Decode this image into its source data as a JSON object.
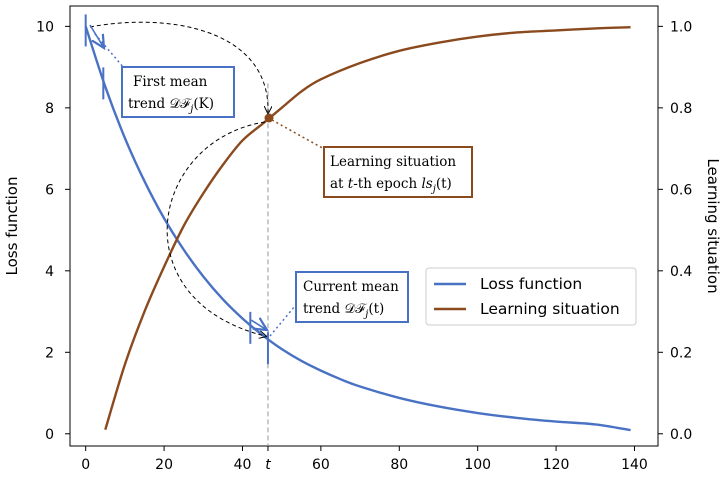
{
  "chart_data": {
    "type": "line",
    "xlabel": "",
    "ylabel_left": "Loss function",
    "ylabel_right": "Learning situation",
    "xlim": [
      -4,
      146
    ],
    "ylim_left": [
      -0.3,
      10.5
    ],
    "ylim_right": [
      -0.03,
      1.05
    ],
    "x_ticks": [
      0,
      20,
      40,
      60,
      80,
      100,
      120,
      140
    ],
    "x_tick_labels": [
      "0",
      "20",
      "40",
      "t",
      "60",
      "80",
      "100",
      "120",
      "140"
    ],
    "t_marker": 46.5,
    "left_ticks": [
      0,
      2,
      4,
      6,
      8,
      10
    ],
    "right_ticks": [
      "0.0",
      "0.2",
      "0.4",
      "0.6",
      "0.8",
      "1.0"
    ],
    "series": [
      {
        "name": "Loss function",
        "axis": "left",
        "color": "#4a72c4",
        "x": [
          0,
          5,
          10,
          15,
          20,
          25,
          30,
          35,
          40,
          45,
          50,
          55,
          60,
          65,
          70,
          80,
          90,
          100,
          110,
          120,
          130,
          139
        ],
        "y": [
          10.0,
          8.52,
          7.26,
          6.2,
          5.29,
          4.52,
          3.86,
          3.3,
          2.83,
          2.43,
          2.08,
          1.79,
          1.55,
          1.34,
          1.16,
          0.88,
          0.67,
          0.51,
          0.39,
          0.3,
          0.23,
          0.09
        ]
      },
      {
        "name": "Learning situation",
        "axis": "right",
        "color": "#8b4a1e",
        "x": [
          5,
          10,
          15,
          20,
          25,
          30,
          35,
          40,
          45,
          50,
          55,
          60,
          70,
          80,
          90,
          100,
          110,
          120,
          130,
          139
        ],
        "y": [
          0.01,
          0.17,
          0.3,
          0.41,
          0.51,
          0.59,
          0.66,
          0.72,
          0.76,
          0.8,
          0.84,
          0.87,
          0.91,
          0.94,
          0.96,
          0.975,
          0.985,
          0.99,
          0.995,
          0.998
        ]
      }
    ],
    "legend": {
      "position": "center-right",
      "entries": [
        "Loss function",
        "Learning situation"
      ]
    },
    "annotations": [
      {
        "key": "first_mean",
        "lines": [
          "First mean",
          "trend 𝒟ℱ",
          "j",
          "(K)"
        ],
        "color": "#4a72c4"
      },
      {
        "key": "learning_situation",
        "lines": [
          "Learning situation",
          "at t-th epoch ls",
          "j",
          "(t)"
        ],
        "color": "#8b4a1e"
      },
      {
        "key": "current_mean",
        "lines": [
          "Current mean",
          "trend 𝒟ℱ",
          "j",
          "(t)"
        ],
        "color": "#4a72c4"
      }
    ],
    "grid": false
  },
  "labels": {
    "ann_first_1": "First mean",
    "ann_first_2": "trend 𝒟ℱ",
    "ann_first_sub": "j",
    "ann_first_3": "(K)",
    "ann_ls_1": "Learning situation",
    "ann_ls_2a": "at ",
    "ann_ls_2t": "t",
    "ann_ls_2b": "-th epoch ",
    "ann_ls_2c": "ls",
    "ann_ls_sub": "j",
    "ann_ls_3": "(t)",
    "ann_cur_1": "Current mean",
    "ann_cur_2": "trend 𝒟ℱ",
    "ann_cur_sub": "j",
    "ann_cur_3": "(t)"
  }
}
